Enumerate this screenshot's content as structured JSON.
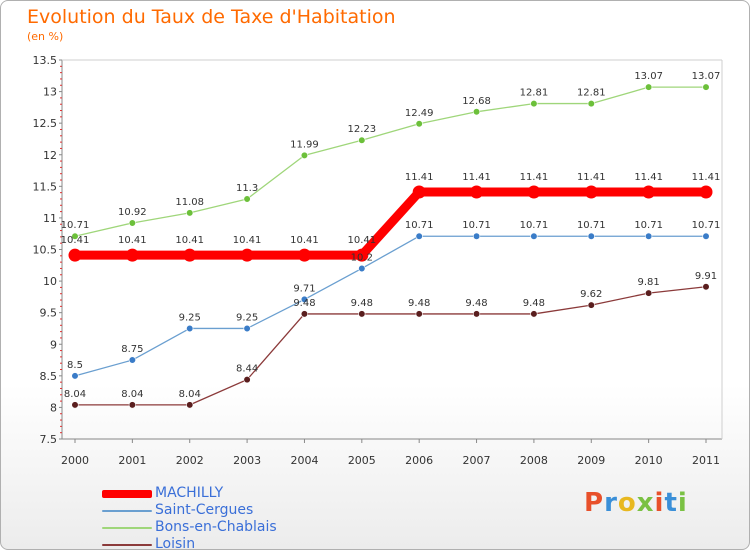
{
  "title": "Evolution du Taux de Taxe d'Habitation",
  "subtitle": "(en %)",
  "logo": {
    "text": "Proxiti",
    "colors": [
      "#e8502a",
      "#3a8fd8",
      "#e8b820",
      "#7ac143",
      "#e8502a",
      "#3a8fd8",
      "#7ac143"
    ]
  },
  "chart_data": {
    "type": "line",
    "x": [
      "2000",
      "2001",
      "2002",
      "2003",
      "2004",
      "2005",
      "2006",
      "2007",
      "2008",
      "2009",
      "2010",
      "2011"
    ],
    "ylim": [
      7.5,
      13.5
    ],
    "yticks": [
      "7.5",
      "8",
      "8.5",
      "9",
      "9.5",
      "10",
      "10.5",
      "11",
      "11.5",
      "12",
      "12.5",
      "13",
      "13.5"
    ],
    "grid": false,
    "legend_position": "bottom-left",
    "series": [
      {
        "name": "MACHILLY",
        "color": "#ff0000",
        "emphasis": true,
        "values": [
          10.41,
          10.41,
          10.41,
          10.41,
          10.41,
          10.41,
          11.41,
          11.41,
          11.41,
          11.41,
          11.41,
          11.41
        ],
        "labels": [
          "10.41",
          "10.41",
          "10.41",
          "10.41",
          "10.41",
          "10.41",
          "11.41",
          "11.41",
          "11.41",
          "11.41",
          "11.41",
          "11.41"
        ]
      },
      {
        "name": "Saint-Cergues",
        "color": "#6a9fd0",
        "point_color": "#3a7cc8",
        "values": [
          8.5,
          8.75,
          9.25,
          9.25,
          9.71,
          10.2,
          10.71,
          10.71,
          10.71,
          10.71,
          10.71,
          10.71
        ],
        "labels": [
          "8.5",
          "8.75",
          "9.25",
          "9.25",
          "9.71",
          "10.2",
          "10.71",
          "10.71",
          "10.71",
          "10.71",
          "10.71",
          "10.71"
        ]
      },
      {
        "name": "Bons-en-Chablais",
        "color": "#9fd67a",
        "point_color": "#6cc03a",
        "values": [
          10.71,
          10.92,
          11.08,
          11.3,
          11.99,
          12.23,
          12.49,
          12.68,
          12.81,
          12.81,
          13.07,
          13.07
        ],
        "labels": [
          "10.71",
          "10.92",
          "11.08",
          "11.3",
          "11.99",
          "12.23",
          "12.49",
          "12.68",
          "12.81",
          "12.81",
          "13.07",
          "13.07"
        ]
      },
      {
        "name": "Loisin",
        "color": "#8b3a3a",
        "point_color": "#5a1e1e",
        "values": [
          8.04,
          8.04,
          8.04,
          8.44,
          9.48,
          9.48,
          9.48,
          9.48,
          9.48,
          9.62,
          9.81,
          9.91
        ],
        "labels": [
          "8.04",
          "8.04",
          "8.04",
          "8.44",
          "9.48",
          "9.48",
          "9.48",
          "9.48",
          "9.48",
          "9.62",
          "9.81",
          "9.91"
        ]
      }
    ]
  }
}
